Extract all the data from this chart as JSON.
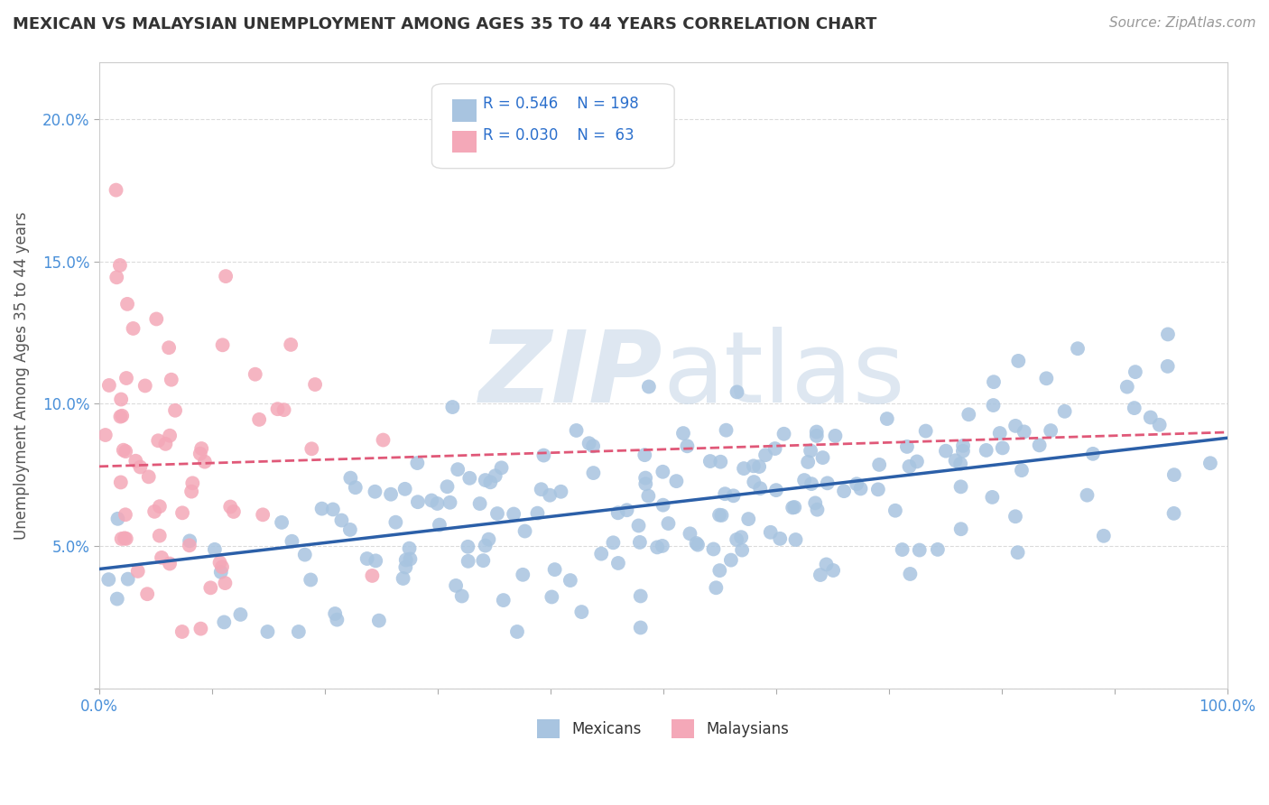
{
  "title": "MEXICAN VS MALAYSIAN UNEMPLOYMENT AMONG AGES 35 TO 44 YEARS CORRELATION CHART",
  "source": "Source: ZipAtlas.com",
  "ylabel": "Unemployment Among Ages 35 to 44 years",
  "xlim": [
    0,
    1.0
  ],
  "ylim": [
    0,
    0.22
  ],
  "x_ticks": [
    0.0,
    0.1,
    0.2,
    0.3,
    0.4,
    0.5,
    0.6,
    0.7,
    0.8,
    0.9,
    1.0
  ],
  "x_tick_labels": [
    "0.0%",
    "",
    "",
    "",
    "",
    "",
    "",
    "",
    "",
    "",
    "100.0%"
  ],
  "y_ticks": [
    0.0,
    0.05,
    0.1,
    0.15,
    0.2
  ],
  "y_tick_labels": [
    "",
    "5.0%",
    "10.0%",
    "15.0%",
    "20.0%"
  ],
  "mexicans_R": "0.546",
  "mexicans_N": "198",
  "malaysians_R": "0.030",
  "malaysians_N": "63",
  "legend_mexicans_label": "Mexicans",
  "legend_malaysians_label": "Malaysians",
  "blue_color": "#a8c4e0",
  "blue_line_color": "#2b5fa8",
  "pink_color": "#f4a8b8",
  "pink_line_color": "#e05878",
  "legend_R_color": "#2b6fcc",
  "watermark_zip": "ZIP",
  "watermark_atlas": "atlas",
  "watermark_color": "#c8d8e8",
  "background_color": "#ffffff",
  "grid_color": "#cccccc",
  "title_color": "#333333",
  "axis_label_color": "#555555",
  "tick_label_color": "#4a90d9",
  "mexicans_trend_x": [
    0.0,
    1.0
  ],
  "mexicans_trend_y_start": 0.042,
  "mexicans_trend_y_end": 0.088,
  "malaysians_trend_x": [
    0.0,
    1.0
  ],
  "malaysians_trend_y_start": 0.078,
  "malaysians_trend_y_end": 0.09
}
